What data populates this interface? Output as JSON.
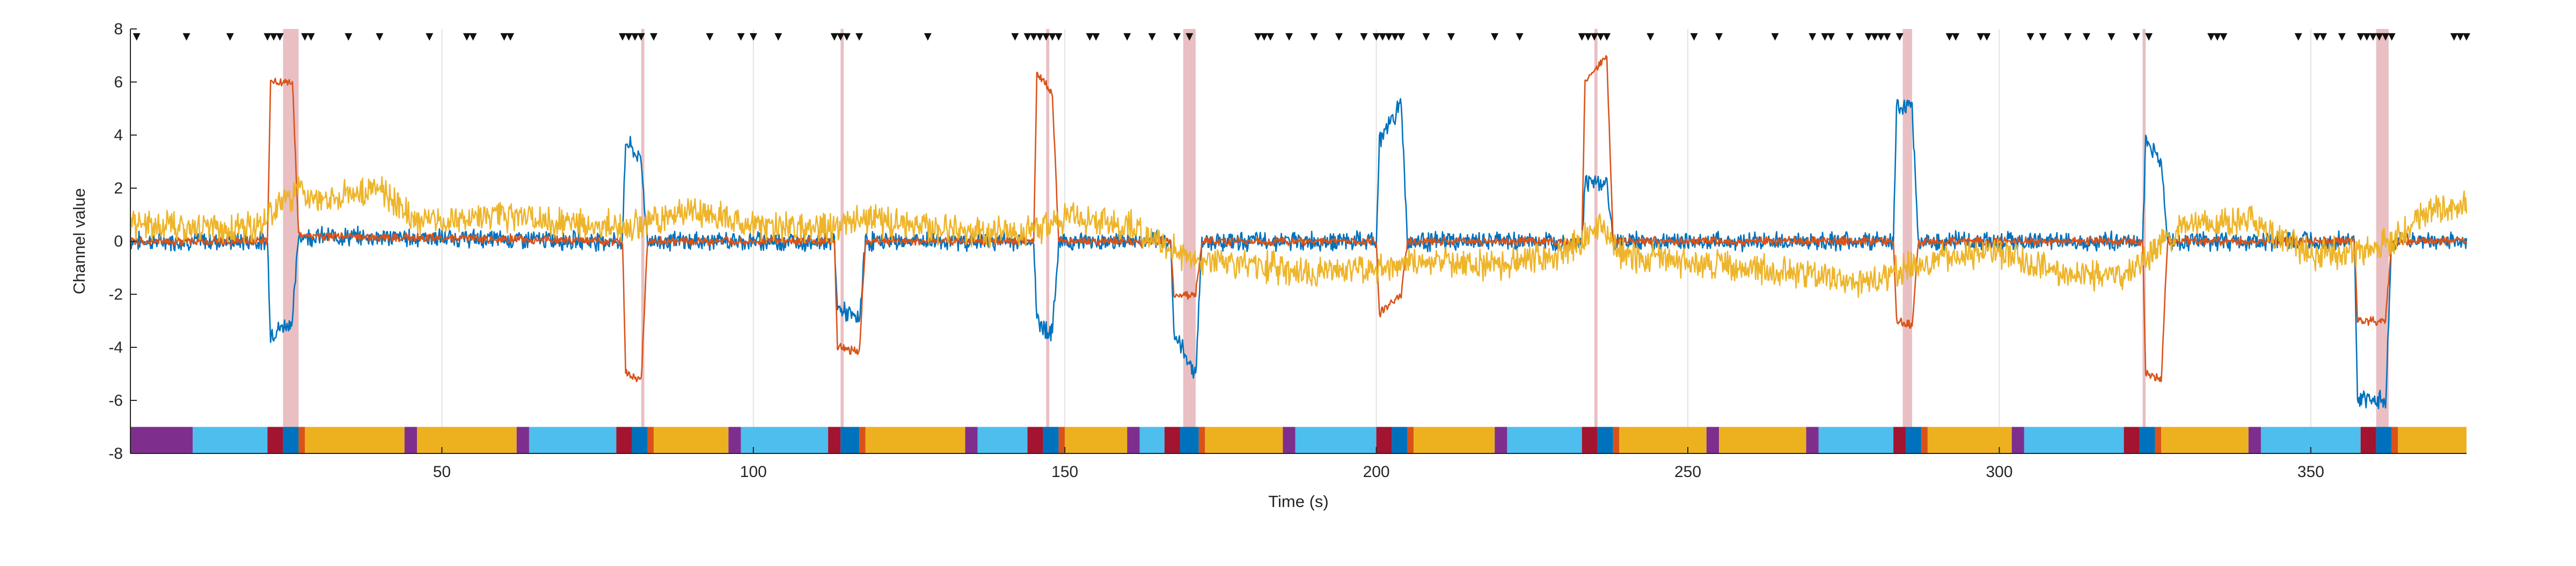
{
  "chart_data": {
    "type": "line",
    "title": "",
    "xlabel": "Time (s)",
    "ylabel": "Channel value",
    "xlim": [
      0,
      375
    ],
    "ylim": [
      -8,
      8
    ],
    "xticks": [
      50,
      100,
      150,
      200,
      250,
      300,
      350
    ],
    "yticks": [
      -8,
      -6,
      -4,
      -2,
      0,
      2,
      4,
      6,
      8
    ],
    "grid": "vertical lines only",
    "legend": "none",
    "series_colors": {
      "blue": "#0072BD",
      "orange": "#D95319",
      "yellow": "#EDB120"
    },
    "series": [
      {
        "color": "blue",
        "x": [
          0,
          22,
          22.5,
          26,
          27,
          79,
          79.5,
          82,
          83,
          113,
          113.5,
          117,
          118,
          145,
          145.5,
          148,
          149,
          167,
          167.5,
          171,
          172,
          200,
          200.5,
          204,
          205,
          233,
          233.5,
          237,
          238,
          283,
          283.5,
          286,
          287,
          323,
          323.5,
          326,
          327,
          357,
          357.5,
          362,
          363,
          375
        ],
        "values": [
          0,
          0,
          -3.5,
          -3.0,
          0.2,
          0,
          3.8,
          3.0,
          0,
          0,
          -2.5,
          -3.0,
          0,
          0,
          -3.0,
          -3.5,
          0,
          0,
          -3.5,
          -5.0,
          0,
          0,
          3.8,
          5.2,
          0,
          0,
          2.2,
          2.2,
          0,
          0,
          5.0,
          5.0,
          0,
          0,
          3.8,
          3.0,
          0,
          0,
          -6.0,
          -6.0,
          0,
          0
        ]
      },
      {
        "color": "orange",
        "x": [
          0,
          22,
          22.5,
          26,
          27,
          79,
          79.5,
          82,
          83,
          113,
          113.5,
          117,
          118,
          145,
          145.5,
          148,
          149,
          167,
          167.5,
          171,
          172,
          200,
          200.5,
          204,
          205,
          233,
          233.5,
          237,
          238,
          283,
          283.5,
          286,
          287,
          323,
          323.5,
          326,
          327,
          357,
          357.5,
          362,
          363,
          375
        ],
        "values": [
          0,
          0,
          6.0,
          6.0,
          0.2,
          0,
          -5.0,
          -5.2,
          0,
          0,
          -4.0,
          -4.2,
          0,
          0,
          6.3,
          5.6,
          0,
          0,
          -2.0,
          -2.0,
          0,
          0,
          -2.7,
          -2.0,
          0,
          0,
          6.0,
          7.0,
          0,
          0,
          -3.0,
          -3.2,
          0,
          0,
          -5.0,
          -5.2,
          0,
          0,
          -3.0,
          -3.0,
          0,
          0
        ]
      },
      {
        "color": "yellow",
        "x": [
          0,
          20,
          27,
          29,
          40,
          46,
          60,
          70,
          80,
          90,
          100,
          110,
          118,
          130,
          140,
          148,
          150,
          160,
          170,
          180,
          190,
          200,
          210,
          220,
          230,
          236,
          240,
          250,
          260,
          270,
          280,
          290,
          300,
          310,
          320,
          330,
          340,
          350,
          360,
          365,
          370,
          375
        ],
        "values": [
          0.6,
          0.5,
          2.0,
          1.6,
          2.0,
          0.8,
          0.9,
          0.7,
          0.5,
          1.2,
          0.6,
          0.4,
          0.8,
          0.5,
          0.3,
          0.6,
          0.9,
          0.6,
          -0.6,
          -0.9,
          -1.2,
          -1.0,
          -0.7,
          -0.9,
          -0.5,
          0.5,
          -0.6,
          -0.8,
          -1.0,
          -1.3,
          -1.5,
          -0.6,
          -0.5,
          -1.2,
          -1.3,
          0.6,
          0.8,
          -0.5,
          -0.4,
          0.4,
          1.2,
          1.4
        ]
      }
    ],
    "highlight_bands": [
      {
        "x0": 24.5,
        "x1": 27.0
      },
      {
        "x0": 82.0,
        "x1": 82.5
      },
      {
        "x0": 114.0,
        "x1": 114.5
      },
      {
        "x0": 147.0,
        "x1": 147.5
      },
      {
        "x0": 169.0,
        "x1": 171.0
      },
      {
        "x0": 235.0,
        "x1": 235.5
      },
      {
        "x0": 284.5,
        "x1": 286.0
      },
      {
        "x0": 323.0,
        "x1": 323.5
      },
      {
        "x0": 360.5,
        "x1": 362.5
      }
    ],
    "band_color": "#E7B8BC",
    "markers": {
      "symbol": "▼",
      "y": 7.7,
      "x": [
        1,
        9,
        16,
        22,
        23,
        24,
        28,
        29,
        35,
        40,
        48,
        54,
        55,
        60,
        61,
        79,
        80,
        81,
        82,
        84,
        93,
        98,
        100,
        104,
        113,
        114,
        115,
        117,
        128,
        142,
        144,
        145,
        146,
        147,
        148,
        149,
        154,
        155,
        160,
        164,
        168,
        170,
        181,
        182,
        183,
        186,
        190,
        194,
        198,
        200,
        201,
        202,
        203,
        204,
        208,
        212,
        219,
        223,
        233,
        234,
        235,
        236,
        237,
        244,
        251,
        255,
        264,
        270,
        272,
        273,
        276,
        279,
        280,
        281,
        282,
        284,
        292,
        293,
        297,
        298,
        305,
        307,
        311,
        314,
        318,
        322,
        324,
        334,
        335,
        336,
        348,
        351,
        352,
        355,
        358,
        359,
        360,
        361,
        362,
        363,
        373,
        374,
        375
      ]
    },
    "phase_bar": {
      "y0": -8,
      "y1": -7,
      "colors": {
        "purple": "#7E2F8E",
        "cyan": "#4DBEEE",
        "red": "#A2142F",
        "blue": "#0072BD",
        "orange": "#D95319",
        "yellow": "#EDB120"
      },
      "segments": [
        {
          "x0": 0,
          "x1": 10,
          "c": "purple"
        },
        {
          "x0": 10,
          "x1": 22,
          "c": "cyan"
        },
        {
          "x0": 22,
          "x1": 24.5,
          "c": "red"
        },
        {
          "x0": 24.5,
          "x1": 27,
          "c": "blue"
        },
        {
          "x0": 27,
          "x1": 28,
          "c": "orange"
        },
        {
          "x0": 28,
          "x1": 44,
          "c": "yellow"
        },
        {
          "x0": 44,
          "x1": 46,
          "c": "purple"
        },
        {
          "x0": 46,
          "x1": 62,
          "c": "yellow"
        },
        {
          "x0": 62,
          "x1": 64,
          "c": "purple"
        },
        {
          "x0": 64,
          "x1": 78,
          "c": "cyan"
        },
        {
          "x0": 78,
          "x1": 80.5,
          "c": "red"
        },
        {
          "x0": 80.5,
          "x1": 83,
          "c": "blue"
        },
        {
          "x0": 83,
          "x1": 84,
          "c": "orange"
        },
        {
          "x0": 84,
          "x1": 96,
          "c": "yellow"
        },
        {
          "x0": 96,
          "x1": 98,
          "c": "purple"
        },
        {
          "x0": 98,
          "x1": 112,
          "c": "cyan"
        },
        {
          "x0": 112,
          "x1": 114,
          "c": "red"
        },
        {
          "x0": 114,
          "x1": 117,
          "c": "blue"
        },
        {
          "x0": 117,
          "x1": 118,
          "c": "orange"
        },
        {
          "x0": 118,
          "x1": 134,
          "c": "yellow"
        },
        {
          "x0": 134,
          "x1": 136,
          "c": "purple"
        },
        {
          "x0": 136,
          "x1": 144,
          "c": "cyan"
        },
        {
          "x0": 144,
          "x1": 146.5,
          "c": "red"
        },
        {
          "x0": 146.5,
          "x1": 149,
          "c": "blue"
        },
        {
          "x0": 149,
          "x1": 150,
          "c": "orange"
        },
        {
          "x0": 150,
          "x1": 160,
          "c": "yellow"
        },
        {
          "x0": 160,
          "x1": 162,
          "c": "purple"
        },
        {
          "x0": 162,
          "x1": 166,
          "c": "cyan"
        },
        {
          "x0": 166,
          "x1": 168.5,
          "c": "red"
        },
        {
          "x0": 168.5,
          "x1": 171.5,
          "c": "blue"
        },
        {
          "x0": 171.5,
          "x1": 172.5,
          "c": "orange"
        },
        {
          "x0": 172.5,
          "x1": 185,
          "c": "yellow"
        },
        {
          "x0": 185,
          "x1": 187,
          "c": "purple"
        },
        {
          "x0": 187,
          "x1": 200,
          "c": "cyan"
        },
        {
          "x0": 200,
          "x1": 202.5,
          "c": "red"
        },
        {
          "x0": 202.5,
          "x1": 205,
          "c": "blue"
        },
        {
          "x0": 205,
          "x1": 206,
          "c": "orange"
        },
        {
          "x0": 206,
          "x1": 219,
          "c": "yellow"
        },
        {
          "x0": 219,
          "x1": 221,
          "c": "purple"
        },
        {
          "x0": 221,
          "x1": 233,
          "c": "cyan"
        },
        {
          "x0": 233,
          "x1": 235.5,
          "c": "red"
        },
        {
          "x0": 235.5,
          "x1": 238,
          "c": "blue"
        },
        {
          "x0": 238,
          "x1": 239,
          "c": "orange"
        },
        {
          "x0": 239,
          "x1": 253,
          "c": "yellow"
        },
        {
          "x0": 253,
          "x1": 255,
          "c": "purple"
        },
        {
          "x0": 255,
          "x1": 269,
          "c": "yellow"
        },
        {
          "x0": 269,
          "x1": 271,
          "c": "purple"
        },
        {
          "x0": 271,
          "x1": 283,
          "c": "cyan"
        },
        {
          "x0": 283,
          "x1": 285,
          "c": "red"
        },
        {
          "x0": 285,
          "x1": 287.5,
          "c": "blue"
        },
        {
          "x0": 287.5,
          "x1": 288.5,
          "c": "orange"
        },
        {
          "x0": 288.5,
          "x1": 302,
          "c": "yellow"
        },
        {
          "x0": 302,
          "x1": 304,
          "c": "purple"
        },
        {
          "x0": 304,
          "x1": 320,
          "c": "cyan"
        },
        {
          "x0": 320,
          "x1": 322.5,
          "c": "red"
        },
        {
          "x0": 322.5,
          "x1": 325,
          "c": "blue"
        },
        {
          "x0": 325,
          "x1": 326,
          "c": "orange"
        },
        {
          "x0": 326,
          "x1": 340,
          "c": "yellow"
        },
        {
          "x0": 340,
          "x1": 342,
          "c": "purple"
        },
        {
          "x0": 342,
          "x1": 358,
          "c": "cyan"
        },
        {
          "x0": 358,
          "x1": 360.5,
          "c": "red"
        },
        {
          "x0": 360.5,
          "x1": 363,
          "c": "blue"
        },
        {
          "x0": 363,
          "x1": 364,
          "c": "orange"
        },
        {
          "x0": 364,
          "x1": 375,
          "c": "yellow"
        }
      ]
    }
  }
}
